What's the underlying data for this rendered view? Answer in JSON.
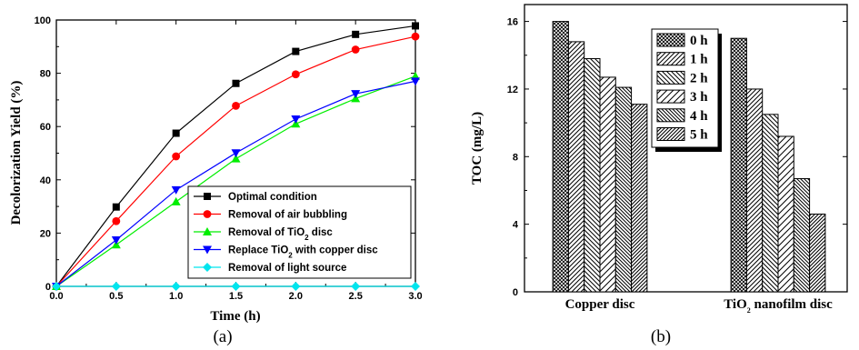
{
  "captions": [
    "(a)",
    "(b)"
  ],
  "chart_data": [
    {
      "type": "line",
      "xlabel": "Time (h)",
      "ylabel": "Decolorization Yield (%)",
      "xlim": [
        0,
        3.0
      ],
      "ylim": [
        0,
        100
      ],
      "x": [
        0,
        0.5,
        1.0,
        1.5,
        2.0,
        2.5,
        3.0
      ],
      "x_tick_labels": [
        "0.0",
        "0.5",
        "1.0",
        "1.5",
        "2.0",
        "2.5",
        "3.0"
      ],
      "y_tick_labels": [
        "0",
        "20",
        "40",
        "60",
        "80",
        "100"
      ],
      "y_ticks": [
        0,
        20,
        40,
        60,
        80,
        100
      ],
      "legend_position": "bottom-right",
      "series": [
        {
          "name": "Optimal condition",
          "color": "#000000",
          "marker": "square",
          "values": [
            0,
            29.8,
            57.5,
            76.2,
            88.2,
            94.6,
            97.8
          ]
        },
        {
          "name": "Removal of air bubbling",
          "color": "#ff0000",
          "marker": "circle",
          "values": [
            0,
            24.5,
            48.8,
            67.8,
            79.6,
            88.9,
            93.8
          ]
        },
        {
          "name": "Removal of TiO",
          "name_sub": "2",
          "name_suffix": " disc",
          "color": "#00ee00",
          "marker": "triangle-up",
          "values": [
            0,
            15.6,
            31.8,
            47.9,
            61.0,
            70.5,
            78.9
          ]
        },
        {
          "name": "Replace TiO",
          "name_sub": "2",
          "name_suffix": " with copper disc",
          "color": "#0000ff",
          "marker": "triangle-down",
          "values": [
            0,
            17.4,
            36.2,
            50.1,
            62.8,
            72.3,
            77.0
          ]
        },
        {
          "name": "Removal of light source",
          "color": "#00e5ee",
          "marker": "diamond",
          "values": [
            0,
            0,
            0,
            0,
            0,
            0,
            0
          ]
        }
      ]
    },
    {
      "type": "bar",
      "ylabel": "TOC (mg/L)",
      "ylim": [
        0,
        17
      ],
      "y_ticks": [
        0,
        4,
        8,
        12,
        16
      ],
      "y_tick_labels": [
        "0",
        "4",
        "8",
        "12",
        "16"
      ],
      "legend_position": "top-center",
      "categories": [
        {
          "label": "Copper disc"
        },
        {
          "label": "TiO",
          "sub": "2",
          "suffix": " nanofilm disc"
        }
      ],
      "series": [
        {
          "name": "0 h",
          "pattern": "dense-cross",
          "values": [
            16.0,
            15.0
          ]
        },
        {
          "name": "1 h",
          "pattern": "diag-right",
          "values": [
            14.8,
            12.0
          ]
        },
        {
          "name": "2 h",
          "pattern": "diag-left",
          "values": [
            13.8,
            10.5
          ]
        },
        {
          "name": "3 h",
          "pattern": "diag-right-sparse",
          "values": [
            12.7,
            9.2
          ]
        },
        {
          "name": "4 h",
          "pattern": "diag-left-dense",
          "values": [
            12.1,
            6.7
          ]
        },
        {
          "name": "5 h",
          "pattern": "diag-right-dense",
          "values": [
            11.1,
            4.6
          ]
        }
      ]
    }
  ]
}
